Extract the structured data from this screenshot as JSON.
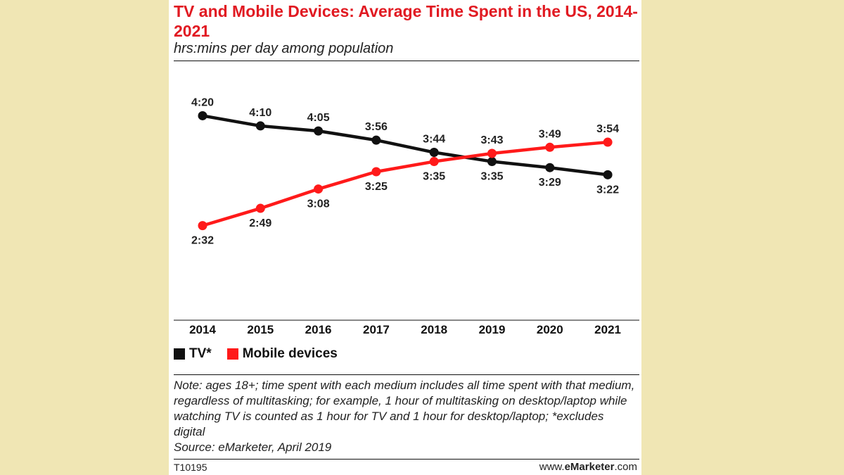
{
  "chart_data": {
    "type": "line",
    "title": "TV and Mobile Devices: Average Time Spent in the US, 2014-2021",
    "subtitle": "hrs:mins per day among population",
    "categories": [
      "2014",
      "2015",
      "2016",
      "2017",
      "2018",
      "2019",
      "2020",
      "2021"
    ],
    "series": [
      {
        "name": "TV*",
        "color": "#111111",
        "values": [
          260,
          250,
          245,
          236,
          224,
          215,
          209,
          202
        ],
        "labels": [
          "4:20",
          "4:10",
          "4:05",
          "3:56",
          "3:44",
          "3:35",
          "3:29",
          "3:22"
        ],
        "label_positions": [
          "above",
          "above",
          "above",
          "above",
          "above",
          "below",
          "below",
          "below"
        ]
      },
      {
        "name": "Mobile devices",
        "color": "#ff1a1a",
        "values": [
          152,
          169,
          188,
          205,
          215,
          223,
          229,
          234
        ],
        "labels": [
          "2:32",
          "2:49",
          "3:08",
          "3:25",
          "3:35",
          "3:43",
          "3:49",
          "3:54"
        ],
        "label_positions": [
          "below",
          "below",
          "below",
          "below",
          "below",
          "above",
          "above",
          "above"
        ]
      }
    ],
    "ylim": [
      140,
      270
    ],
    "grid": false,
    "legend": "bottom-left"
  },
  "legend": {
    "tv": "TV*",
    "mobile": "Mobile devices"
  },
  "note": "Note: ages 18+; time spent with each medium includes all time spent with that medium, regardless of multitasking; for example, 1 hour of multitasking on desktop/laptop while watching TV is counted as 1 hour for TV and 1 hour for desktop/laptop; *excludes digital",
  "source": "Source: eMarketer, April 2019",
  "footer": {
    "id": "T10195",
    "brand_prefix": "www.",
    "brand_bold": "eMarketer",
    "brand_suffix": ".com"
  }
}
